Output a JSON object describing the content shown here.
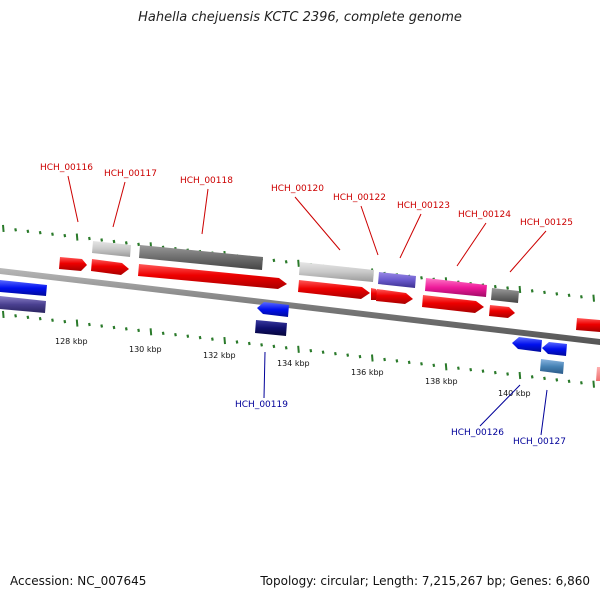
{
  "title": "Hahella chejuensis KCTC 2396, complete genome",
  "footer": {
    "accession": "Accession: NC_007645",
    "summary": "Topology: circular; Length: 7,215,267 bp; Genes: 6,860"
  },
  "colors": {
    "label_forward": "#cc0000",
    "label_reverse": "#000099",
    "backbone": "#888888",
    "tick": "#2a7a2a"
  },
  "scale_labels": [
    "128 kbp",
    "130 kbp",
    "132 kbp",
    "134 kbp",
    "136 kbp",
    "138 kbp",
    "140 kbp"
  ],
  "gene_labels_forward": [
    "HCH_00116",
    "HCH_00117",
    "HCH_00118",
    "HCH_00120",
    "HCH_00122",
    "HCH_00123",
    "HCH_00124",
    "HCH_00125"
  ],
  "gene_labels_reverse": [
    "HCH_00119",
    "HCH_00126",
    "HCH_00127"
  ]
}
